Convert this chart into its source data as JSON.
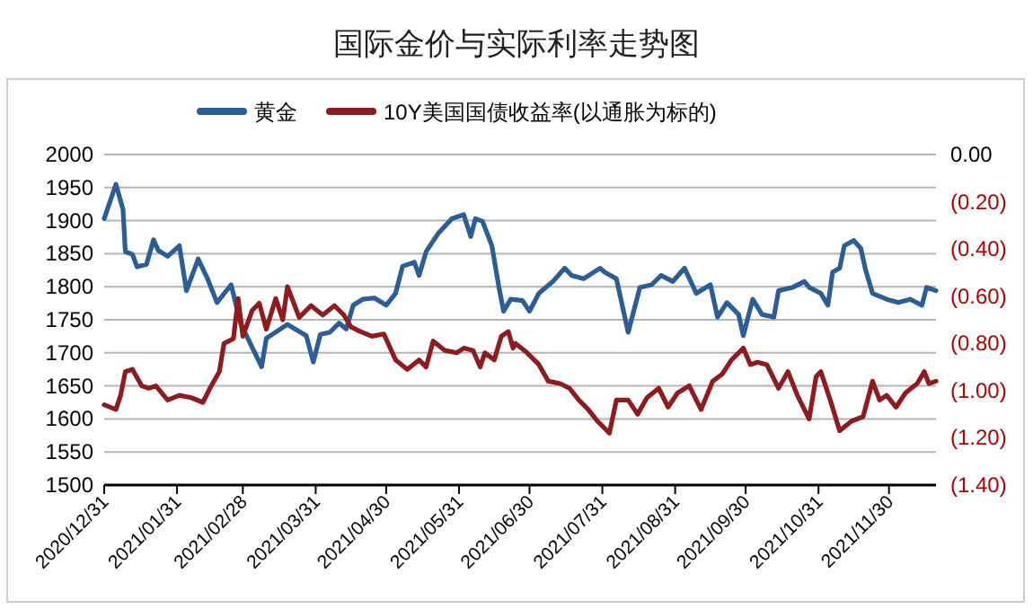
{
  "chart_data": {
    "type": "line",
    "title": "国际金价与实际利率走势图",
    "legend": "top",
    "grid": "y",
    "line_style": "solid",
    "marker": "none",
    "xlim": [
      "2020-12-31",
      "2021-12-20"
    ],
    "xticks": [
      {
        "value": "2020-12-31",
        "label": "2020/12/31"
      },
      {
        "value": "2021-01-31",
        "label": "2021/01/31"
      },
      {
        "value": "2021-02-28",
        "label": "2021/02/28"
      },
      {
        "value": "2021-03-31",
        "label": "2021/03/31"
      },
      {
        "value": "2021-04-30",
        "label": "2021/04/30"
      },
      {
        "value": "2021-05-31",
        "label": "2021/05/31"
      },
      {
        "value": "2021-06-30",
        "label": "2021/06/30"
      },
      {
        "value": "2021-07-31",
        "label": "2021/07/31"
      },
      {
        "value": "2021-08-31",
        "label": "2021/08/31"
      },
      {
        "value": "2021-09-30",
        "label": "2021/09/30"
      },
      {
        "value": "2021-10-31",
        "label": "2021/10/31"
      },
      {
        "value": "2021-11-30",
        "label": "2021/11/30"
      }
    ],
    "ylim": [
      1500,
      2000
    ],
    "yticks": [
      1500,
      1550,
      1600,
      1650,
      1700,
      1750,
      1800,
      1850,
      1900,
      1950,
      2000
    ],
    "y2lim": [
      -1.4,
      0
    ],
    "y2ticks": [
      {
        "value": -1.4,
        "label": "(1.40)"
      },
      {
        "value": -1.2,
        "label": "(1.20)"
      },
      {
        "value": -1.0,
        "label": "(1.00)"
      },
      {
        "value": -0.8,
        "label": "(0.80)"
      },
      {
        "value": -0.6,
        "label": "(0.60)"
      },
      {
        "value": -0.4,
        "label": "(0.40)"
      },
      {
        "value": -0.2,
        "label": "(0.20)"
      },
      {
        "value": 0,
        "label": "0.00"
      }
    ],
    "series": [
      {
        "name": "黄金",
        "color": "#2b5d97",
        "x": [
          "2020-12-31",
          "2021-01-05",
          "2021-01-08",
          "2021-01-09",
          "2021-01-12",
          "2021-01-14",
          "2021-01-18",
          "2021-01-21",
          "2021-01-23",
          "2021-01-27",
          "2021-02-01",
          "2021-02-04",
          "2021-02-09",
          "2021-02-13",
          "2021-02-17",
          "2021-02-23",
          "2021-02-27",
          "2021-03-04",
          "2021-03-08",
          "2021-03-10",
          "2021-03-19",
          "2021-03-27",
          "2021-03-30",
          "2021-04-02",
          "2021-04-06",
          "2021-04-10",
          "2021-04-13",
          "2021-04-16",
          "2021-04-20",
          "2021-04-25",
          "2021-04-30",
          "2021-05-04",
          "2021-05-07",
          "2021-05-12",
          "2021-05-14",
          "2021-05-17",
          "2021-05-22",
          "2021-05-28",
          "2021-06-02",
          "2021-06-05",
          "2021-06-07",
          "2021-06-10",
          "2021-06-14",
          "2021-06-17",
          "2021-06-19",
          "2021-06-22",
          "2021-06-27",
          "2021-06-30",
          "2021-07-04",
          "2021-07-10",
          "2021-07-15",
          "2021-07-18",
          "2021-07-23",
          "2021-07-30",
          "2021-08-01",
          "2021-08-06",
          "2021-08-11",
          "2021-08-16",
          "2021-08-21",
          "2021-08-25",
          "2021-08-30",
          "2021-09-04",
          "2021-09-09",
          "2021-09-15",
          "2021-09-18",
          "2021-09-22",
          "2021-09-27",
          "2021-09-29",
          "2021-10-03",
          "2021-10-07",
          "2021-10-12",
          "2021-10-14",
          "2021-10-20",
          "2021-10-25",
          "2021-10-27",
          "2021-11-01",
          "2021-11-04",
          "2021-11-06",
          "2021-11-09",
          "2021-11-11",
          "2021-11-15",
          "2021-11-18",
          "2021-11-20",
          "2021-11-23",
          "2021-11-29",
          "2021-12-04",
          "2021-12-09",
          "2021-12-14",
          "2021-12-16",
          "2021-12-20"
        ],
        "values": [
          1903,
          1955,
          1917,
          1853,
          1849,
          1830,
          1834,
          1871,
          1855,
          1846,
          1862,
          1794,
          1842,
          1812,
          1776,
          1803,
          1745,
          1708,
          1679,
          1722,
          1743,
          1726,
          1686,
          1728,
          1731,
          1745,
          1736,
          1772,
          1781,
          1783,
          1772,
          1790,
          1831,
          1837,
          1817,
          1853,
          1880,
          1903,
          1909,
          1876,
          1903,
          1899,
          1862,
          1799,
          1763,
          1781,
          1779,
          1763,
          1790,
          1808,
          1828,
          1817,
          1812,
          1828,
          1822,
          1812,
          1731,
          1799,
          1803,
          1817,
          1808,
          1828,
          1790,
          1803,
          1754,
          1776,
          1758,
          1726,
          1781,
          1758,
          1754,
          1794,
          1799,
          1808,
          1799,
          1790,
          1772,
          1822,
          1828,
          1862,
          1870,
          1858,
          1826,
          1790,
          1781,
          1776,
          1781,
          1772,
          1799,
          1794
        ]
      },
      {
        "name": "10Y美国国债收益率(以通胀为标的)",
        "color": "#8e1c1f",
        "axis": "y2",
        "x": [
          "2020-12-31",
          "2021-01-05",
          "2021-01-07",
          "2021-01-09",
          "2021-01-12",
          "2021-01-16",
          "2021-01-19",
          "2021-01-22",
          "2021-01-27",
          "2021-02-01",
          "2021-02-06",
          "2021-02-11",
          "2021-02-14",
          "2021-02-18",
          "2021-02-20",
          "2021-02-24",
          "2021-02-26",
          "2021-02-28",
          "2021-03-04",
          "2021-03-07",
          "2021-03-10",
          "2021-03-14",
          "2021-03-17",
          "2021-03-19",
          "2021-03-24",
          "2021-03-29",
          "2021-04-03",
          "2021-04-08",
          "2021-04-12",
          "2021-04-15",
          "2021-04-19",
          "2021-04-24",
          "2021-04-29",
          "2021-05-04",
          "2021-05-09",
          "2021-05-14",
          "2021-05-17",
          "2021-05-20",
          "2021-05-25",
          "2021-05-30",
          "2021-06-02",
          "2021-06-06",
          "2021-06-09",
          "2021-06-11",
          "2021-06-15",
          "2021-06-18",
          "2021-06-21",
          "2021-06-23",
          "2021-06-24",
          "2021-06-29",
          "2021-07-04",
          "2021-07-08",
          "2021-07-13",
          "2021-07-17",
          "2021-07-21",
          "2021-07-25",
          "2021-07-29",
          "2021-08-03",
          "2021-08-06",
          "2021-08-11",
          "2021-08-15",
          "2021-08-19",
          "2021-08-24",
          "2021-08-28",
          "2021-09-01",
          "2021-09-06",
          "2021-09-11",
          "2021-09-16",
          "2021-09-20",
          "2021-09-24",
          "2021-09-29",
          "2021-10-02",
          "2021-10-05",
          "2021-10-09",
          "2021-10-14",
          "2021-10-18",
          "2021-10-22",
          "2021-10-27",
          "2021-10-30",
          "2021-11-01",
          "2021-11-05",
          "2021-11-09",
          "2021-11-14",
          "2021-11-19",
          "2021-11-23",
          "2021-11-26",
          "2021-11-29",
          "2021-12-03",
          "2021-12-07",
          "2021-12-12",
          "2021-12-15",
          "2021-12-17",
          "2021-12-20"
        ],
        "values": [
          -1.06,
          -1.08,
          -1.02,
          -0.92,
          -0.91,
          -0.98,
          -0.99,
          -0.98,
          -1.04,
          -1.02,
          -1.03,
          -1.05,
          -0.99,
          -0.92,
          -0.8,
          -0.78,
          -0.61,
          -0.77,
          -0.66,
          -0.63,
          -0.74,
          -0.61,
          -0.7,
          -0.56,
          -0.69,
          -0.64,
          -0.68,
          -0.64,
          -0.68,
          -0.73,
          -0.75,
          -0.77,
          -0.76,
          -0.87,
          -0.91,
          -0.87,
          -0.9,
          -0.79,
          -0.83,
          -0.84,
          -0.82,
          -0.83,
          -0.9,
          -0.84,
          -0.87,
          -0.77,
          -0.75,
          -0.82,
          -0.8,
          -0.84,
          -0.89,
          -0.96,
          -0.97,
          -0.99,
          -1.04,
          -1.08,
          -1.13,
          -1.18,
          -1.04,
          -1.04,
          -1.1,
          -1.03,
          -0.99,
          -1.07,
          -1.01,
          -0.98,
          -1.08,
          -0.96,
          -0.93,
          -0.87,
          -0.82,
          -0.89,
          -0.88,
          -0.89,
          -0.99,
          -0.92,
          -1.02,
          -1.12,
          -0.94,
          -0.92,
          -1.04,
          -1.17,
          -1.13,
          -1.11,
          -0.96,
          -1.04,
          -1.02,
          -1.07,
          -1.01,
          -0.97,
          -0.92,
          -0.97,
          -0.96
        ]
      }
    ]
  }
}
